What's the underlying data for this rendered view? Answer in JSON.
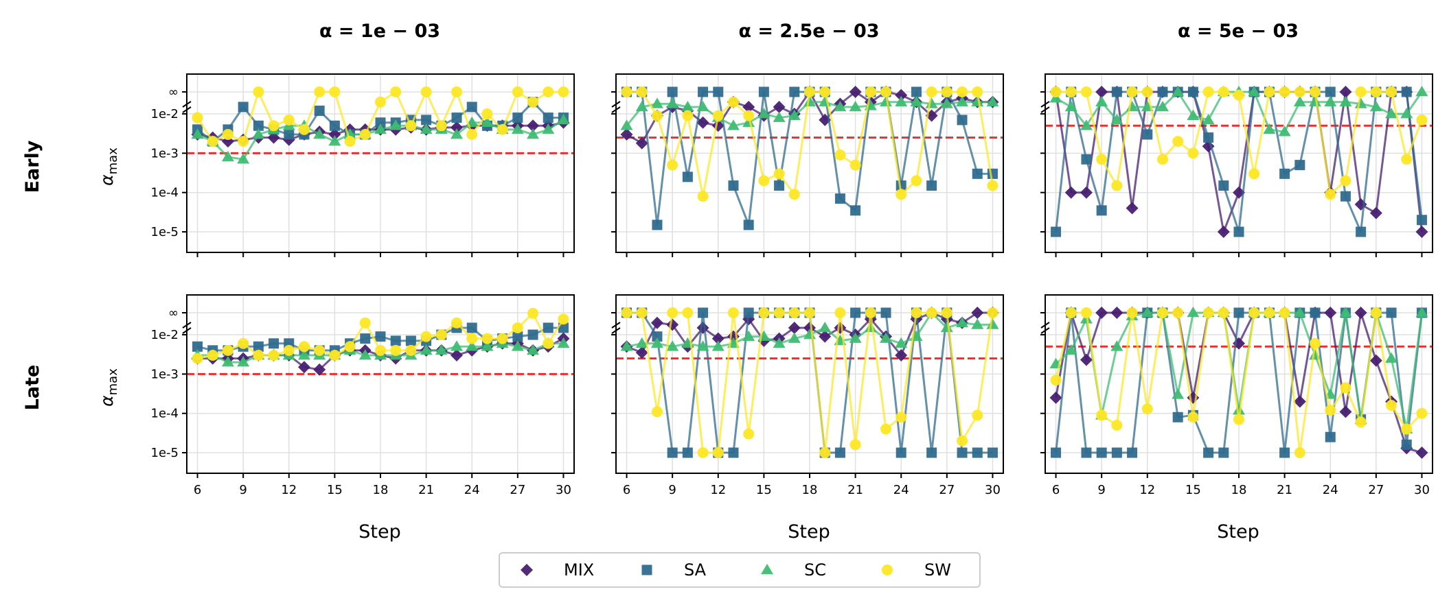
{
  "figure": {
    "row_labels": [
      "Early",
      "Late"
    ],
    "col_titles": [
      "α = 1e − 03",
      "α = 2.5e − 03",
      "α = 5e − 03"
    ],
    "ylabel": "α",
    "ylabel_sub": "max",
    "xlabel": "Step"
  },
  "legend": {
    "placement": "bottom-center",
    "items": [
      {
        "name": "MIX",
        "marker": "diamond",
        "color": "#481f71"
      },
      {
        "name": "SA",
        "marker": "square",
        "color": "#2f6b8e"
      },
      {
        "name": "SC",
        "marker": "triangle",
        "color": "#3fbc73"
      },
      {
        "name": "SW",
        "marker": "circle",
        "color": "#fde725"
      }
    ]
  },
  "colors": {
    "threshold_line": "#e83030",
    "grid": "#e0e0e0"
  },
  "chart_data": [
    {
      "type": "line",
      "row": "Early",
      "title": "α = 1e − 03",
      "threshold": 0.001,
      "yscale": "log",
      "ylim": [
        3e-06,
        "∞"
      ],
      "x": [
        6,
        7,
        8,
        9,
        10,
        11,
        12,
        13,
        14,
        15,
        16,
        17,
        18,
        19,
        20,
        21,
        22,
        23,
        24,
        25,
        26,
        27,
        28,
        29,
        30
      ],
      "xticks": [
        6,
        9,
        12,
        15,
        18,
        21,
        24,
        27,
        30
      ],
      "yticks": [
        "1e-5",
        "1e-4",
        "1e-3",
        "1e-2",
        "∞"
      ],
      "series": [
        {
          "name": "MIX",
          "values": [
            0.003,
            0.0025,
            0.002,
            0.0022,
            0.0025,
            0.0025,
            0.0022,
            0.003,
            0.0035,
            0.003,
            0.004,
            0.004,
            0.004,
            0.004,
            0.0045,
            0.004,
            0.0045,
            0.0045,
            0.005,
            0.005,
            0.005,
            0.005,
            0.005,
            0.005,
            0.006
          ]
        },
        {
          "name": "SA",
          "values": [
            0.004,
            0.002,
            0.004,
            0.015,
            0.005,
            0.004,
            0.003,
            0.003,
            0.012,
            0.005,
            0.003,
            0.003,
            0.006,
            0.006,
            0.007,
            0.007,
            0.005,
            0.008,
            0.015,
            0.005,
            0.005,
            0.008,
            0.02,
            0.008,
            0.008
          ]
        },
        {
          "name": "SC",
          "values": [
            0.003,
            0.002,
            0.0008,
            0.0007,
            0.003,
            0.004,
            0.005,
            0.005,
            0.003,
            0.002,
            0.003,
            0.003,
            0.004,
            0.005,
            0.005,
            0.004,
            0.004,
            0.003,
            0.006,
            0.006,
            0.004,
            0.004,
            0.003,
            0.004,
            0.007
          ]
        },
        {
          "name": "SW",
          "values": [
            0.008,
            0.002,
            0.003,
            0.002,
            "∞",
            0.005,
            0.007,
            0.004,
            "∞",
            "∞",
            0.002,
            0.003,
            0.02,
            "∞",
            0.005,
            "∞",
            0.005,
            "∞",
            0.003,
            0.01,
            0.004,
            "∞",
            0.02,
            "∞",
            "∞"
          ]
        }
      ]
    },
    {
      "type": "line",
      "row": "Early",
      "title": "α = 2.5e − 03",
      "threshold": 0.0025,
      "yscale": "log",
      "ylim": [
        3e-06,
        "∞"
      ],
      "x": [
        6,
        7,
        8,
        9,
        10,
        11,
        12,
        13,
        14,
        15,
        16,
        17,
        18,
        19,
        20,
        21,
        22,
        23,
        24,
        25,
        26,
        27,
        28,
        29,
        30
      ],
      "xticks": [
        6,
        9,
        12,
        15,
        18,
        21,
        24,
        27,
        30
      ],
      "yticks": [
        "1e-5",
        "1e-4",
        "1e-3",
        "1e-2",
        "∞"
      ],
      "series": [
        {
          "name": "MIX",
          "values": [
            0.003,
            0.0018,
            0.009,
            0.015,
            0.012,
            0.006,
            0.005,
            0.02,
            0.015,
            0.009,
            0.015,
            0.01,
            "∞",
            0.007,
            0.018,
            "∞",
            0.02,
            "∞",
            0.03,
            0.02,
            0.009,
            0.02,
            0.025,
            0.02,
            0.02
          ]
        },
        {
          "name": "SA",
          "values": [
            "∞",
            "∞",
            1.5e-05,
            "∞",
            0.00025,
            "∞",
            "∞",
            0.00015,
            1.5e-05,
            "∞",
            0.00015,
            "∞",
            "∞",
            "∞",
            7e-05,
            3.5e-05,
            "∞",
            "∞",
            0.00015,
            "∞",
            0.00015,
            "∞",
            0.007,
            0.0003,
            0.0003
          ]
        },
        {
          "name": "SC",
          "values": [
            0.005,
            0.015,
            0.018,
            0.018,
            0.015,
            0.015,
            0.008,
            0.005,
            0.006,
            0.01,
            0.008,
            0.009,
            0.02,
            0.02,
            0.015,
            0.015,
            0.016,
            0.02,
            0.02,
            0.02,
            0.018,
            0.018,
            0.02,
            0.02,
            0.02
          ]
        },
        {
          "name": "SW",
          "values": [
            "∞",
            "∞",
            0.009,
            0.0005,
            0.009,
            8e-05,
            0.009,
            0.02,
            0.009,
            0.0002,
            0.0003,
            9e-05,
            "∞",
            "∞",
            0.0009,
            0.0005,
            "∞",
            "∞",
            9e-05,
            0.0002,
            "∞",
            "∞",
            "∞",
            "∞",
            0.00015
          ]
        }
      ]
    },
    {
      "type": "line",
      "row": "Early",
      "title": "α = 5e − 03",
      "threshold": 0.005,
      "yscale": "log",
      "ylim": [
        3e-06,
        "∞"
      ],
      "x": [
        6,
        7,
        8,
        9,
        10,
        11,
        12,
        13,
        14,
        15,
        16,
        17,
        18,
        19,
        20,
        21,
        22,
        23,
        24,
        25,
        26,
        27,
        28,
        29,
        30
      ],
      "xticks": [
        6,
        9,
        12,
        15,
        18,
        21,
        24,
        27,
        30
      ],
      "yticks": [
        "1e-5",
        "1e-4",
        "1e-3",
        "1e-2",
        "∞"
      ],
      "series": [
        {
          "name": "MIX",
          "values": [
            "∞",
            0.0001,
            0.0001,
            "∞",
            "∞",
            4e-05,
            "∞",
            "∞",
            "∞",
            "∞",
            0.0015,
            1e-05,
            0.0001,
            "∞",
            "∞",
            "∞",
            "∞",
            "∞",
            0.0001,
            "∞",
            5e-05,
            3e-05,
            "∞",
            "∞",
            1e-05
          ]
        },
        {
          "name": "SA",
          "values": [
            1e-05,
            "∞",
            0.0007,
            3.5e-05,
            "∞",
            "∞",
            0.003,
            "∞",
            "∞",
            "∞",
            0.0025,
            0.00015,
            1e-05,
            "∞",
            "∞",
            0.0003,
            0.0005,
            "∞",
            "∞",
            8e-05,
            1e-05,
            "∞",
            "∞",
            "∞",
            2e-05
          ]
        },
        {
          "name": "SC",
          "values": [
            0.025,
            0.015,
            0.005,
            0.02,
            0.007,
            0.015,
            0.015,
            0.015,
            "∞",
            0.009,
            0.007,
            "∞",
            "∞",
            "∞",
            0.004,
            0.0035,
            0.02,
            0.02,
            0.02,
            0.02,
            0.018,
            0.015,
            0.01,
            0.01,
            "∞"
          ]
        },
        {
          "name": "SW",
          "values": [
            "∞",
            "∞",
            "∞",
            0.0007,
            0.00015,
            "∞",
            "∞",
            0.0007,
            0.002,
            0.001,
            "∞",
            "∞",
            0.03,
            0.0003,
            "∞",
            "∞",
            "∞",
            "∞",
            9e-05,
            0.0002,
            "∞",
            "∞",
            "∞",
            0.0007,
            0.007
          ]
        }
      ]
    },
    {
      "type": "line",
      "row": "Late",
      "title": "α = 1e − 03",
      "threshold": 0.001,
      "yscale": "log",
      "ylim": [
        3e-06,
        "∞"
      ],
      "x": [
        6,
        7,
        8,
        9,
        10,
        11,
        12,
        13,
        14,
        15,
        16,
        17,
        18,
        19,
        20,
        21,
        22,
        23,
        24,
        25,
        26,
        27,
        28,
        29,
        30
      ],
      "xticks": [
        6,
        9,
        12,
        15,
        18,
        21,
        24,
        27,
        30
      ],
      "yticks": [
        "1e-5",
        "1e-4",
        "1e-3",
        "1e-2",
        "∞"
      ],
      "series": [
        {
          "name": "MIX",
          "values": [
            0.0025,
            0.0025,
            0.0025,
            0.0025,
            0.003,
            0.003,
            0.003,
            0.0015,
            0.0013,
            0.003,
            0.004,
            0.004,
            0.003,
            0.0025,
            0.004,
            0.004,
            0.004,
            0.003,
            0.004,
            0.005,
            0.006,
            0.006,
            0.004,
            0.005,
            0.008
          ]
        },
        {
          "name": "SA",
          "values": [
            0.005,
            0.004,
            0.004,
            0.005,
            0.005,
            0.006,
            0.006,
            0.004,
            0.004,
            0.004,
            0.006,
            0.008,
            0.009,
            0.007,
            0.007,
            0.007,
            0.01,
            0.015,
            0.015,
            0.007,
            0.008,
            0.009,
            0.01,
            0.015,
            0.015
          ]
        },
        {
          "name": "SC",
          "values": [
            0.003,
            0.003,
            0.002,
            0.002,
            0.003,
            0.003,
            0.003,
            0.003,
            0.003,
            0.003,
            0.004,
            0.003,
            0.003,
            0.003,
            0.003,
            0.004,
            0.004,
            0.005,
            0.005,
            0.005,
            0.006,
            0.005,
            0.004,
            0.006,
            0.006
          ]
        },
        {
          "name": "SW",
          "values": [
            0.0025,
            0.003,
            0.004,
            0.006,
            0.003,
            0.003,
            0.004,
            0.005,
            0.004,
            0.003,
            0.005,
            0.02,
            0.004,
            0.004,
            0.004,
            0.009,
            0.01,
            0.02,
            0.008,
            0.008,
            0.008,
            0.015,
            0.035,
            0.006,
            0.025
          ]
        }
      ]
    },
    {
      "type": "line",
      "row": "Late",
      "title": "α = 2.5e − 03",
      "threshold": 0.0025,
      "yscale": "log",
      "ylim": [
        3e-06,
        "∞"
      ],
      "x": [
        6,
        7,
        8,
        9,
        10,
        11,
        12,
        13,
        14,
        15,
        16,
        17,
        18,
        19,
        20,
        21,
        22,
        23,
        24,
        25,
        26,
        27,
        28,
        29,
        30
      ],
      "xticks": [
        6,
        9,
        12,
        15,
        18,
        21,
        24,
        27,
        30
      ],
      "yticks": [
        "1e-5",
        "1e-4",
        "1e-3",
        "1e-2",
        "∞"
      ],
      "series": [
        {
          "name": "MIX",
          "values": [
            0.005,
            0.0035,
            0.02,
            0.018,
            0.005,
            0.015,
            0.008,
            0.009,
            0.025,
            0.007,
            0.008,
            0.015,
            0.015,
            0.009,
            0.015,
            0.01,
            0.025,
            0.009,
            0.003,
            0.025,
            "∞",
            0.025,
            0.02,
            "∞",
            "∞"
          ]
        },
        {
          "name": "SA",
          "values": [
            "∞",
            "∞",
            0.009,
            1e-05,
            1e-05,
            "∞",
            1e-05,
            1e-05,
            "∞",
            "∞",
            "∞",
            "∞",
            "∞",
            1e-05,
            1e-05,
            "∞",
            "∞",
            "∞",
            1e-05,
            "∞",
            1e-05,
            "∞",
            1e-05,
            1e-05,
            1e-05
          ]
        },
        {
          "name": "SC",
          "values": [
            0.005,
            0.006,
            0.006,
            0.005,
            0.006,
            0.005,
            0.005,
            0.006,
            0.009,
            0.009,
            0.006,
            0.008,
            0.01,
            0.015,
            0.007,
            0.008,
            0.015,
            0.008,
            0.006,
            0.009,
            "∞",
            0.015,
            0.02,
            0.018,
            0.018
          ]
        },
        {
          "name": "SW",
          "values": [
            "∞",
            "∞",
            0.00011,
            "∞",
            "∞",
            1e-05,
            1e-05,
            "∞",
            3e-05,
            "∞",
            "∞",
            "∞",
            "∞",
            1e-05,
            "∞",
            1.6e-05,
            "∞",
            4e-05,
            8e-05,
            "∞",
            "∞",
            "∞",
            2e-05,
            9e-05,
            "∞"
          ]
        }
      ]
    },
    {
      "type": "line",
      "row": "Late",
      "title": "α = 5e − 03",
      "threshold": 0.005,
      "yscale": "log",
      "ylim": [
        3e-06,
        "∞"
      ],
      "x": [
        6,
        7,
        8,
        9,
        10,
        11,
        12,
        13,
        14,
        15,
        16,
        17,
        18,
        19,
        20,
        21,
        22,
        23,
        24,
        25,
        26,
        27,
        28,
        29,
        30
      ],
      "xticks": [
        6,
        9,
        12,
        15,
        18,
        21,
        24,
        27,
        30
      ],
      "yticks": [
        "1e-5",
        "1e-4",
        "1e-3",
        "1e-2",
        "∞"
      ],
      "series": [
        {
          "name": "MIX",
          "values": [
            0.00025,
            "∞",
            0.0023,
            "∞",
            "∞",
            "∞",
            "∞",
            "∞",
            "∞",
            0.00025,
            "∞",
            "∞",
            0.006,
            "∞",
            "∞",
            "∞",
            0.0002,
            "∞",
            "∞",
            0.00011,
            "∞",
            0.0022,
            0.0002,
            1.3e-05,
            1e-05
          ]
        },
        {
          "name": "SA",
          "values": [
            1e-05,
            "∞",
            1e-05,
            1e-05,
            1e-05,
            1e-05,
            "∞",
            "∞",
            8e-05,
            9e-05,
            1e-05,
            1e-05,
            "∞",
            "∞",
            "∞",
            1e-05,
            "∞",
            "∞",
            2.5e-05,
            "∞",
            7e-05,
            "∞",
            "∞",
            1.6e-05,
            "∞"
          ]
        },
        {
          "name": "SC",
          "values": [
            0.0018,
            0.004,
            0.025,
            9e-05,
            0.005,
            0.03,
            "∞",
            "∞",
            0.0003,
            "∞",
            "∞",
            "∞",
            0.00012,
            "∞",
            "∞",
            "∞",
            "∞",
            0.003,
            0.0003,
            "∞",
            7e-05,
            "∞",
            0.0025,
            4e-05,
            "∞"
          ]
        },
        {
          "name": "SW",
          "values": [
            0.0007,
            "∞",
            "∞",
            9e-05,
            5e-05,
            "∞",
            0.00013,
            "∞",
            "∞",
            8e-05,
            "∞",
            "∞",
            7e-05,
            "∞",
            "∞",
            "∞",
            1e-05,
            0.006,
            0.00012,
            0.00045,
            6e-05,
            "∞",
            0.00016,
            4e-05,
            0.0001
          ]
        }
      ]
    }
  ]
}
